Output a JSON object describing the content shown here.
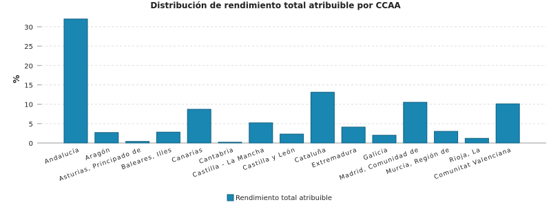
{
  "chart_data": {
    "type": "bar",
    "title": "Distribución de rendimiento total atribuible por CCAA",
    "y_label": "%",
    "categories": [
      "Andalucía",
      "Aragón",
      "Asturias, Principado de",
      "Baleares, Illes",
      "Canarias",
      "Cantabria",
      "Castilla - La Mancha",
      "Castilla y León",
      "Cataluña",
      "Extremadura",
      "Galicia",
      "Madrid, Comunidad de",
      "Murcia, Región de",
      "Rioja, La",
      "Comunitat Valenciana"
    ],
    "series": [
      {
        "name": "Rendimiento total atribuible",
        "color": "#1a87b2",
        "values": [
          32.0,
          2.7,
          0.4,
          2.8,
          8.7,
          0.2,
          5.2,
          2.3,
          13.1,
          4.1,
          2.0,
          10.5,
          3.0,
          1.2,
          10.1
        ]
      }
    ],
    "ylim": [
      0,
      33
    ],
    "yticks": [
      0,
      5,
      10,
      15,
      20,
      25,
      30
    ],
    "grid": true
  }
}
